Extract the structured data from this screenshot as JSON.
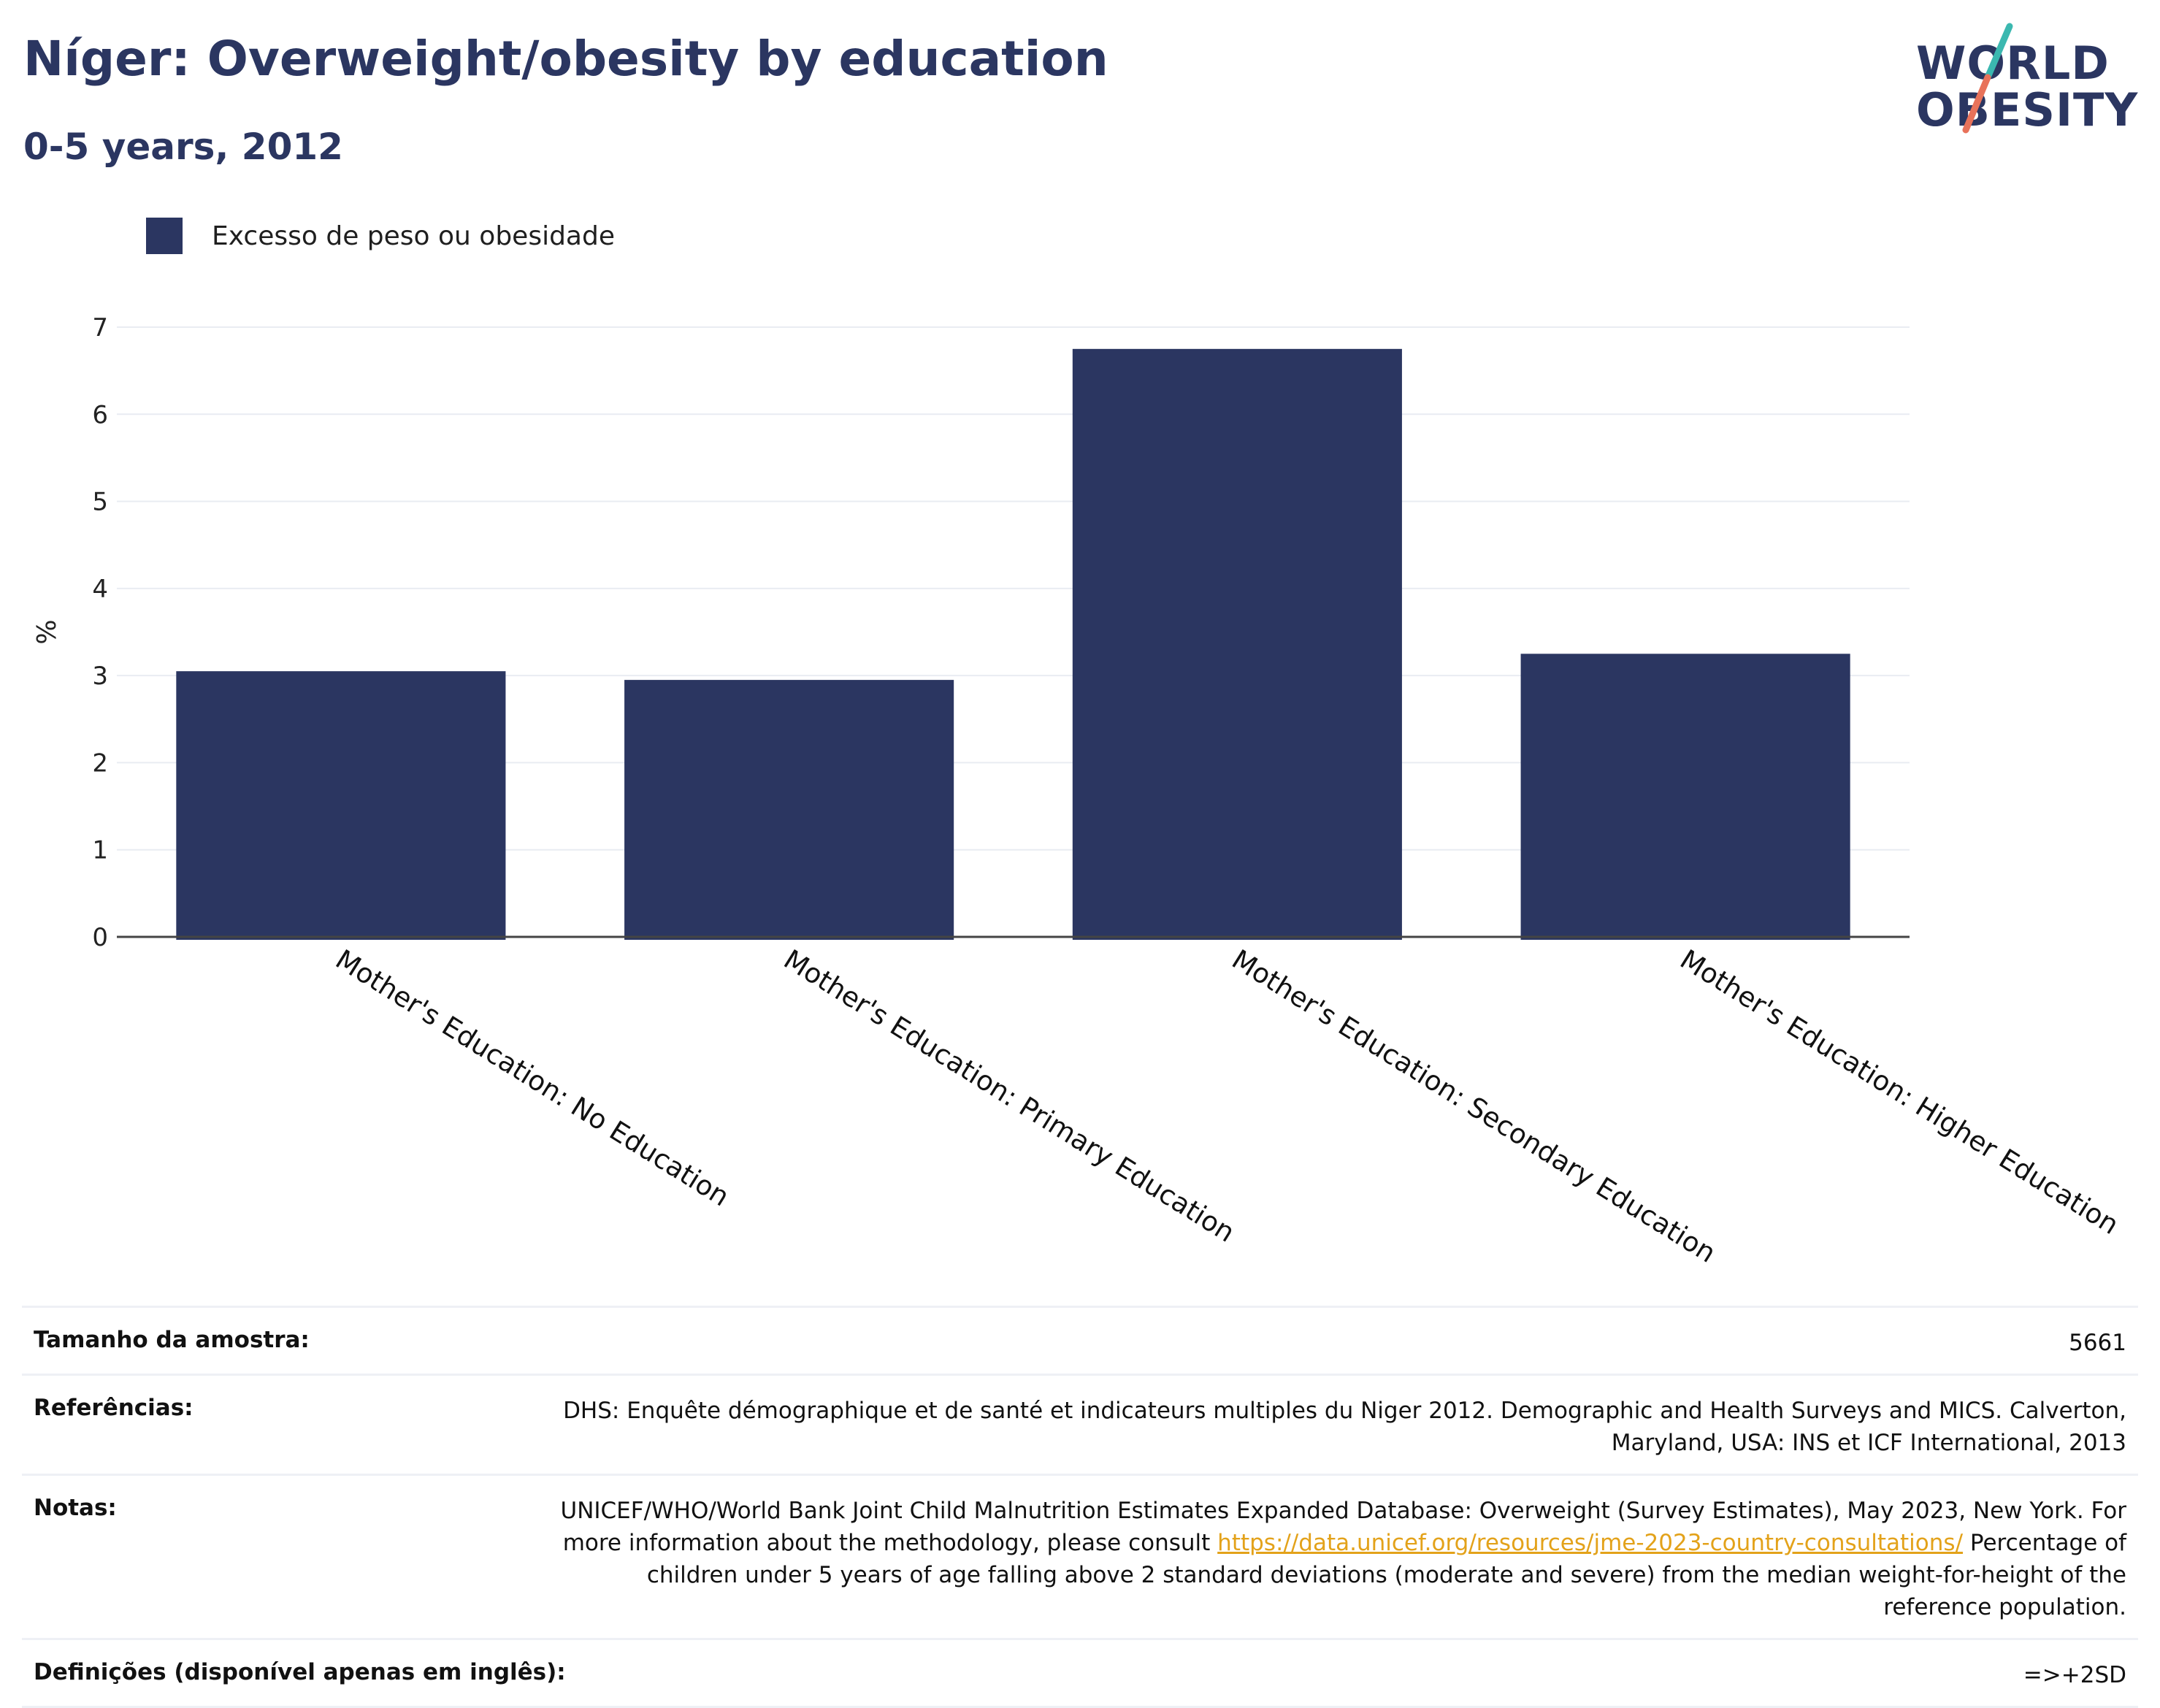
{
  "header": {
    "title": "Níger: Overweight/obesity by education",
    "subtitle": "0-5 years, 2012"
  },
  "logo": {
    "line1": "WORLD",
    "line2": "OBESITY"
  },
  "colors": {
    "bar": "#2b3661",
    "title": "#2b3661",
    "logo_teal": "#3bb8b0",
    "logo_coral": "#e8725a",
    "link": "#e3a21a"
  },
  "chart_data": {
    "type": "bar",
    "categories": [
      "Mother's Education: No Education",
      "Mother's Education: Primary Education",
      "Mother's Education: Secondary Education",
      "Mother's Education: Higher Education"
    ],
    "series": [
      {
        "name": "Excesso de peso ou obesidade",
        "values": [
          3.05,
          2.95,
          6.75,
          3.25
        ]
      }
    ],
    "ylabel": "%",
    "ylim": [
      0,
      7
    ],
    "yticks": [
      0,
      1,
      2,
      3,
      4,
      5,
      6,
      7
    ],
    "grid": true,
    "legend": "top-left"
  },
  "info_table": {
    "sample_size": {
      "label": "Tamanho da amostra:",
      "value": "5661"
    },
    "references": {
      "label": "Referências:",
      "value": "DHS: Enquête démographique et de santé et indicateurs multiples du Niger 2012. Demographic and Health Surveys and MICS. Calverton, Maryland, USA: INS et ICF International, 2013"
    },
    "notes": {
      "label": "Notas:",
      "text_before": "UNICEF/WHO/World Bank Joint Child Malnutrition Estimates Expanded Database: Overweight (Survey Estimates), May 2023, New York. For more information about the methodology, please consult ",
      "link": "https://data.unicef.org/resources/jme-2023-country-consultations/",
      "text_after": " Percentage of children under 5 years of age falling above 2 standard deviations (moderate and severe) from the median weight-for-height of the reference population."
    },
    "definitions": {
      "label": "Definições (disponível apenas em inglês):",
      "value": "=>+2SD"
    }
  }
}
